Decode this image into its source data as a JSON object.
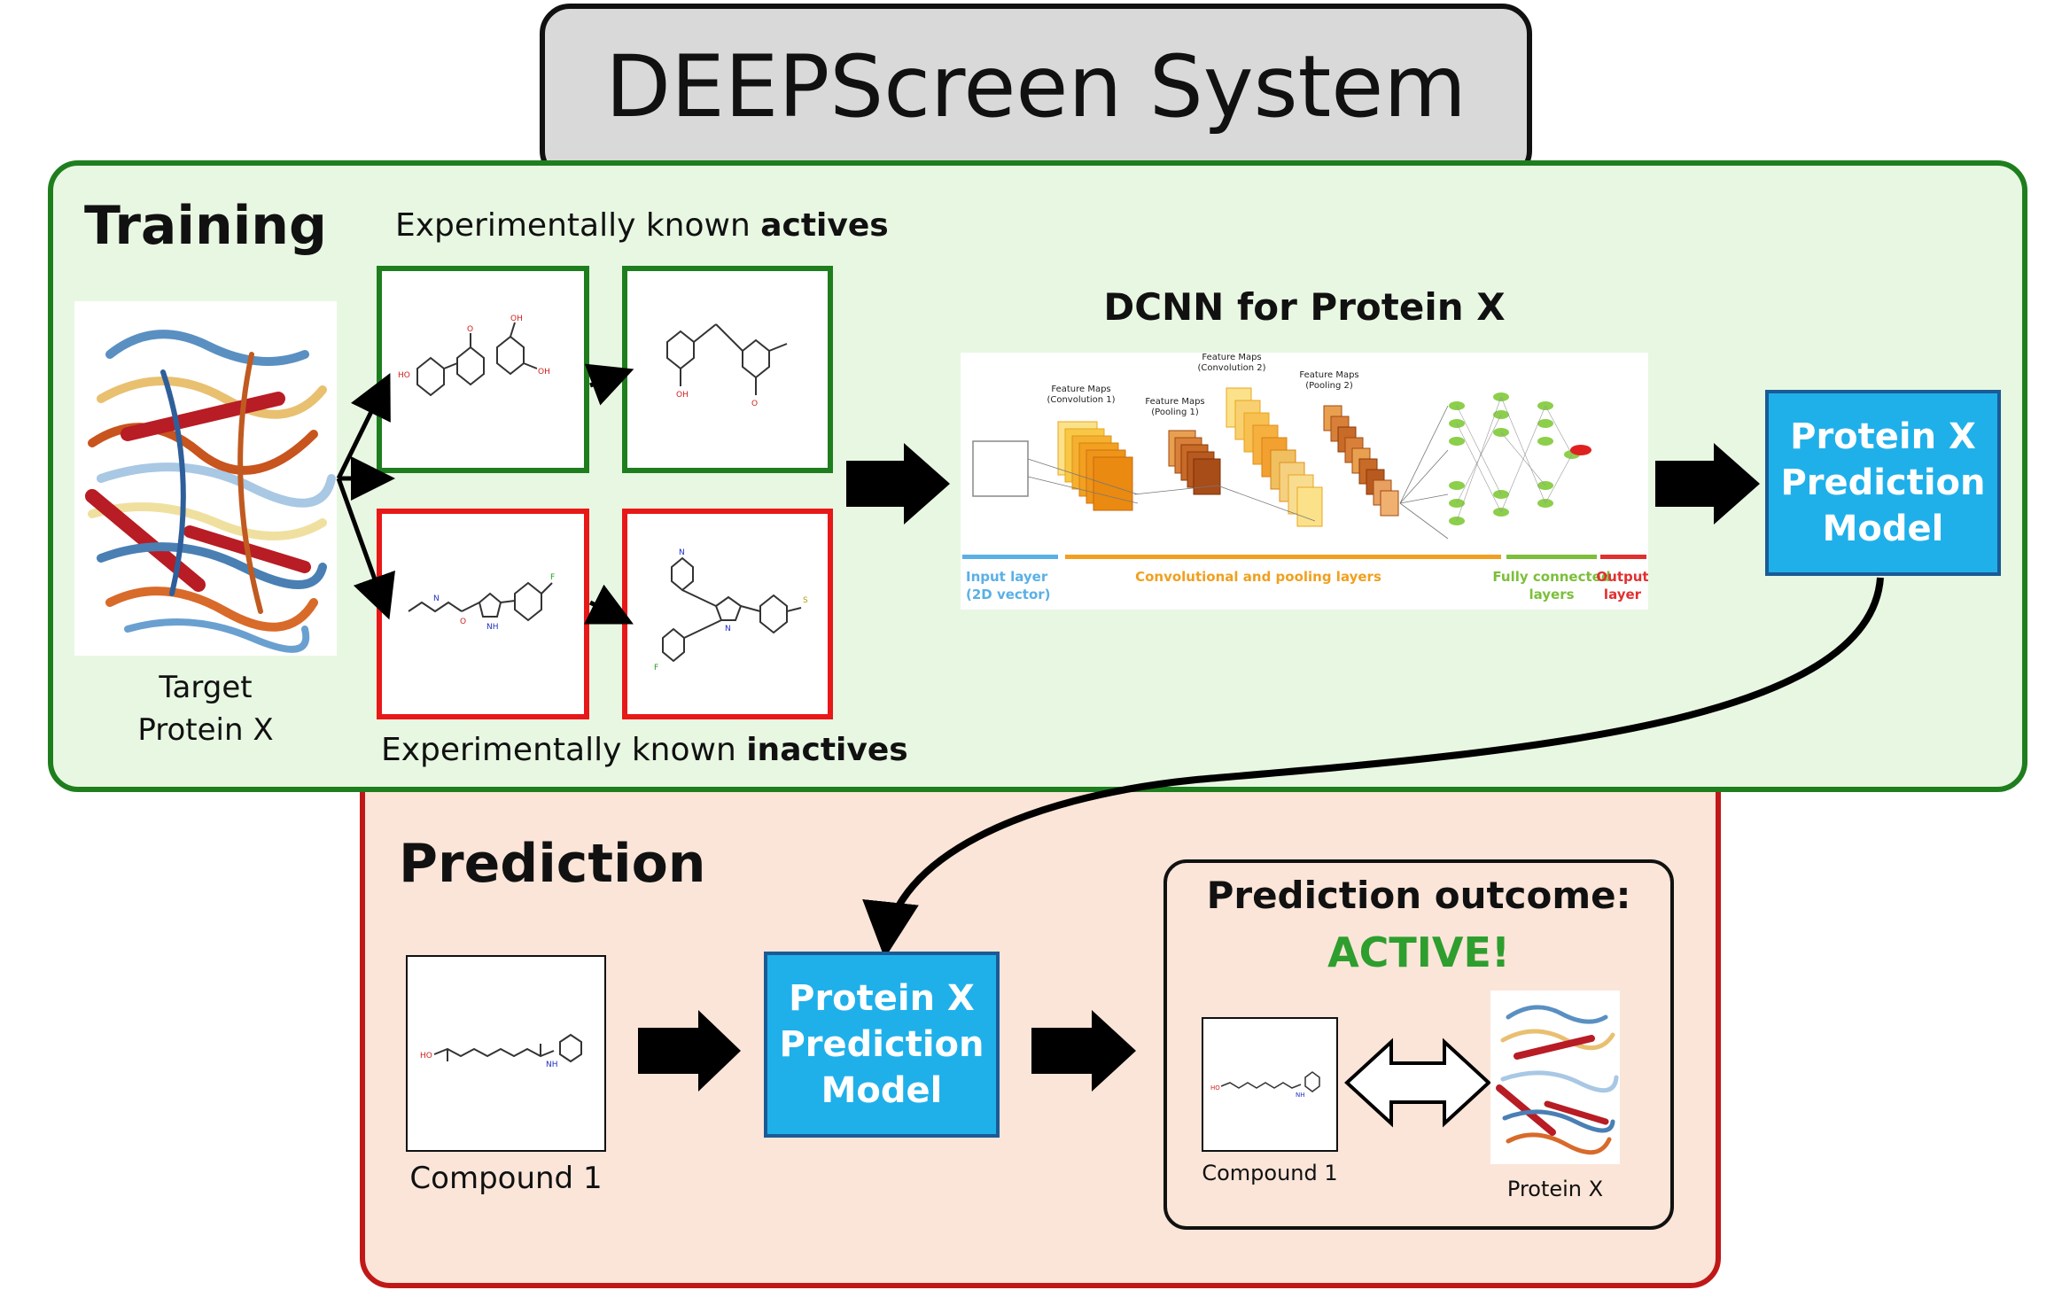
{
  "title": "DEEPScreen System",
  "training": {
    "heading": "Training",
    "actives_prefix": "Experimentally known ",
    "actives_bold": "actives",
    "inactives_prefix": "Experimentally known ",
    "inactives_bold": "inactives",
    "target_line1": "Target",
    "target_line2": "Protein X",
    "dcnn_title": "DCNN for Protein X",
    "model_line1": "Protein X",
    "model_line2": "Prediction",
    "model_line3": "Model"
  },
  "cnn": {
    "fm_conv1_a": "Feature Maps",
    "fm_conv1_b": "(Convolution 1)",
    "fm_pool1_a": "Feature Maps",
    "fm_pool1_b": "(Pooling 1)",
    "fm_conv2_a": "Feature Maps",
    "fm_conv2_b": "(Convolution 2)",
    "fm_pool2_a": "Feature Maps",
    "fm_pool2_b": "(Pooling 2)",
    "input_a": "Input layer",
    "input_b": "(2D vector)",
    "conv_label": "Convolutional and pooling layers",
    "fc_a": "Fully connected",
    "fc_b": "layers",
    "out_a": "Output",
    "out_b": "layer",
    "colors": {
      "input": "#5ab0e6",
      "conv": "#f0a020",
      "fc": "#7cbf3a",
      "output": "#e03030"
    }
  },
  "molecule_labels": {
    "ho": "HO",
    "oh": "OH",
    "o": "O",
    "f": "F",
    "n": "N",
    "nh": "NH",
    "s": "S"
  },
  "prediction": {
    "heading": "Prediction",
    "compound_label": "Compound 1",
    "model_line1": "Protein X",
    "model_line2": "Prediction",
    "model_line3": "Model",
    "outcome_title": "Prediction outcome:",
    "outcome_value": "ACTIVE!",
    "outcome_compound": "Compound 1",
    "outcome_protein": "Protein X"
  },
  "colors": {
    "training_bg": "#e8f7e2",
    "training_border": "#1e7e1e",
    "prediction_bg": "#fbe5d8",
    "prediction_border": "#c01818",
    "active_green": "#2e9e2e",
    "model_blue": "#1fb0ea"
  }
}
